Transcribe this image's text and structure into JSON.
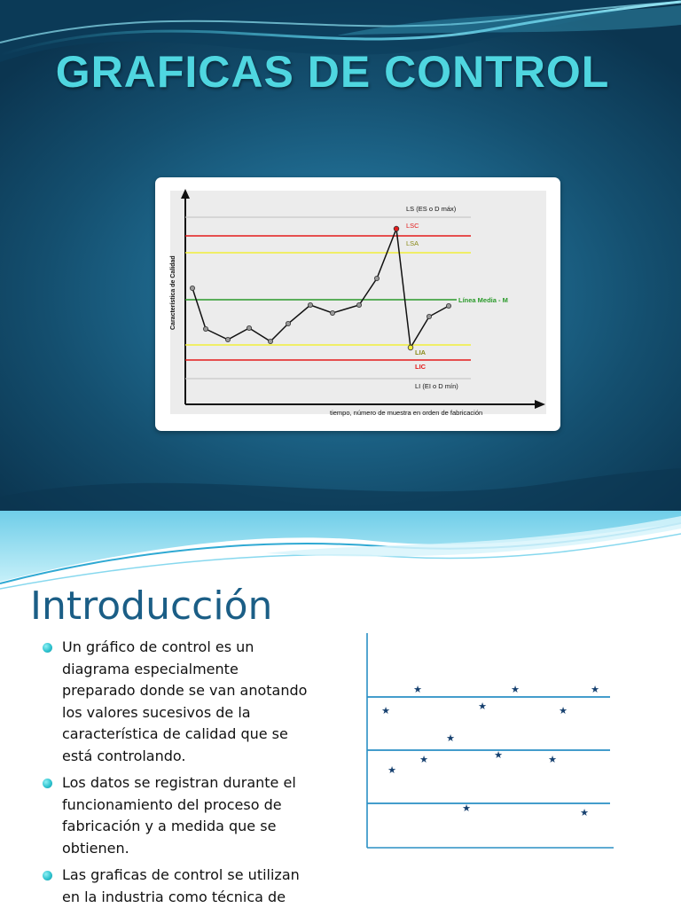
{
  "slide1": {
    "title": "GRAFICAS DE CONTROL",
    "figure": {
      "y_axis_label": "Característica de Calidad",
      "x_axis_label": "tiempo, número de muestra en orden de fabricación",
      "lines": {
        "ls": "LS (ES o D máx)",
        "lsc": "LSC",
        "lsa": "LSA",
        "media": "Línea Media - M",
        "lia": "LIA",
        "lic": "LIC",
        "li": "LI (EI o D mín)"
      },
      "colors": {
        "red": "#e31b1b",
        "yellow": "#f2ee3a",
        "green": "#2a9a2a",
        "gray": "#c8c8c8",
        "plot_bg": "#ececec"
      }
    }
  },
  "slide2": {
    "title": "Introducción",
    "bullets": [
      "Un gráfico de control es un diagrama especialmente preparado donde se van anotando los valores sucesivos de la característica de calidad que se está controlando.",
      "Los datos se registran durante el funcionamiento del proceso de fabricación y a medida que se obtienen.",
      "Las graficas de control se utilizan en la industria como técnica de diagnóstico"
    ],
    "colors": {
      "title": "#1b5e86",
      "line": "#2a8fc4",
      "star": "#16406f"
    }
  }
}
